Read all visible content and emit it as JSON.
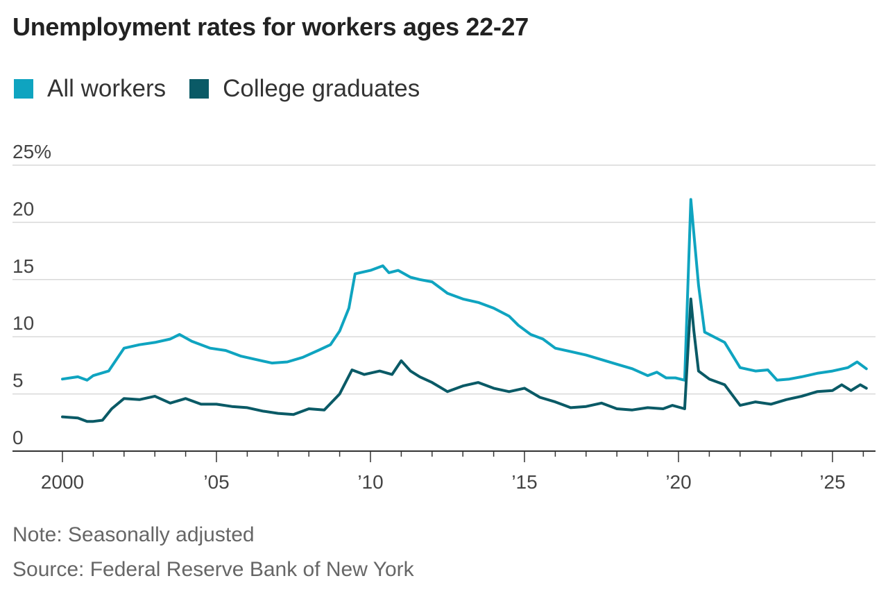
{
  "title": "Unemployment rates for workers ages 22-27",
  "note": "Note: Seasonally adjusted",
  "source": "Source: Federal Reserve Bank of New York",
  "chart_data": {
    "type": "line",
    "title": "Unemployment rates for workers ages 22-27",
    "xlabel": "",
    "ylabel": "",
    "xlim": [
      2000,
      2026.3
    ],
    "ylim": [
      0,
      25
    ],
    "yticks": [
      0,
      5,
      10,
      15,
      20,
      25
    ],
    "ytick_labels": [
      "0",
      "5",
      "10",
      "15",
      "20",
      "25%"
    ],
    "xticks": [
      2000,
      2005,
      2010,
      2015,
      2020,
      2025
    ],
    "xtick_labels": [
      "2000",
      "’05",
      "’10",
      "’15",
      "’20",
      "’25"
    ],
    "grid": true,
    "legend_position": "top-left",
    "series": [
      {
        "name": "All workers",
        "color": "#0fa4c0",
        "x": [
          2000.0,
          2000.5,
          2000.8,
          2001.0,
          2001.5,
          2002.0,
          2002.5,
          2003.0,
          2003.5,
          2003.8,
          2004.2,
          2004.8,
          2005.3,
          2005.8,
          2006.3,
          2006.8,
          2007.3,
          2007.8,
          2008.3,
          2008.7,
          2009.0,
          2009.3,
          2009.5,
          2010.0,
          2010.4,
          2010.6,
          2010.9,
          2011.3,
          2011.6,
          2012.0,
          2012.5,
          2013.0,
          2013.5,
          2014.0,
          2014.5,
          2014.8,
          2015.2,
          2015.6,
          2016.0,
          2016.5,
          2017.0,
          2017.5,
          2018.0,
          2018.5,
          2019.0,
          2019.3,
          2019.6,
          2019.9,
          2020.2,
          2020.4,
          2020.5,
          2020.65,
          2020.85,
          2021.0,
          2021.5,
          2022.0,
          2022.5,
          2022.9,
          2023.2,
          2023.6,
          2024.0,
          2024.5,
          2025.0,
          2025.5,
          2025.8,
          2026.1
        ],
        "y": [
          6.3,
          6.5,
          6.2,
          6.6,
          7.0,
          9.0,
          9.3,
          9.5,
          9.8,
          10.2,
          9.6,
          9.0,
          8.8,
          8.3,
          8.0,
          7.7,
          7.8,
          8.2,
          8.8,
          9.3,
          10.5,
          12.5,
          15.5,
          15.8,
          16.2,
          15.6,
          15.8,
          15.2,
          15.0,
          14.8,
          13.8,
          13.3,
          13.0,
          12.5,
          11.8,
          11.0,
          10.2,
          9.8,
          9.0,
          8.7,
          8.4,
          8.0,
          7.6,
          7.2,
          6.6,
          6.9,
          6.4,
          6.4,
          6.2,
          22.0,
          19.0,
          14.5,
          10.4,
          10.2,
          9.5,
          7.3,
          7.0,
          7.1,
          6.2,
          6.3,
          6.5,
          6.8,
          7.0,
          7.3,
          7.8,
          7.2
        ]
      },
      {
        "name": "College graduates",
        "color": "#0a5a66",
        "x": [
          2000.0,
          2000.5,
          2000.8,
          2001.0,
          2001.3,
          2001.6,
          2002.0,
          2002.5,
          2003.0,
          2003.5,
          2004.0,
          2004.5,
          2005.0,
          2005.5,
          2006.0,
          2006.5,
          2007.0,
          2007.5,
          2008.0,
          2008.5,
          2009.0,
          2009.4,
          2009.8,
          2010.3,
          2010.7,
          2011.0,
          2011.3,
          2011.6,
          2012.0,
          2012.5,
          2013.0,
          2013.5,
          2014.0,
          2014.5,
          2015.0,
          2015.5,
          2016.0,
          2016.5,
          2017.0,
          2017.5,
          2018.0,
          2018.5,
          2019.0,
          2019.5,
          2019.8,
          2020.2,
          2020.4,
          2020.5,
          2020.65,
          2020.85,
          2021.0,
          2021.5,
          2022.0,
          2022.5,
          2023.0,
          2023.5,
          2024.0,
          2024.5,
          2025.0,
          2025.3,
          2025.6,
          2025.9,
          2026.1
        ],
        "y": [
          3.0,
          2.9,
          2.6,
          2.6,
          2.7,
          3.7,
          4.6,
          4.5,
          4.8,
          4.2,
          4.6,
          4.1,
          4.1,
          3.9,
          3.8,
          3.5,
          3.3,
          3.2,
          3.7,
          3.6,
          5.0,
          7.1,
          6.7,
          7.0,
          6.7,
          7.9,
          7.0,
          6.5,
          6.0,
          5.2,
          5.7,
          6.0,
          5.5,
          5.2,
          5.5,
          4.7,
          4.3,
          3.8,
          3.9,
          4.2,
          3.7,
          3.6,
          3.8,
          3.7,
          4.0,
          3.7,
          13.3,
          10.5,
          7.0,
          6.6,
          6.3,
          5.8,
          4.0,
          4.3,
          4.1,
          4.5,
          4.8,
          5.2,
          5.3,
          5.8,
          5.3,
          5.8,
          5.5
        ]
      }
    ]
  }
}
